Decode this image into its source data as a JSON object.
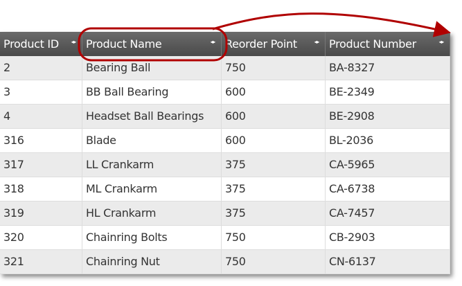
{
  "columns": [
    "Product ID",
    "Product Name",
    "Reorder Point",
    "Product Number"
  ],
  "sort_icon": "◂▸",
  "rows": [
    [
      "2",
      "Bearing Ball",
      "750",
      "BA-8327"
    ],
    [
      "3",
      "BB Ball Bearing",
      "600",
      "BE-2349"
    ],
    [
      "4",
      "Headset Ball Bearings",
      "600",
      "BE-2908"
    ],
    [
      "316",
      "Blade",
      "600",
      "BL-2036"
    ],
    [
      "317",
      "LL Crankarm",
      "375",
      "CA-5965"
    ],
    [
      "318",
      "ML Crankarm",
      "375",
      "CA-6738"
    ],
    [
      "319",
      "HL Crankarm",
      "375",
      "CA-7457"
    ],
    [
      "320",
      "Chainring Bolts",
      "750",
      "CB-2903"
    ],
    [
      "321",
      "Chainring Nut",
      "750",
      "CN-6137"
    ]
  ],
  "annotation_color": "#b00000"
}
